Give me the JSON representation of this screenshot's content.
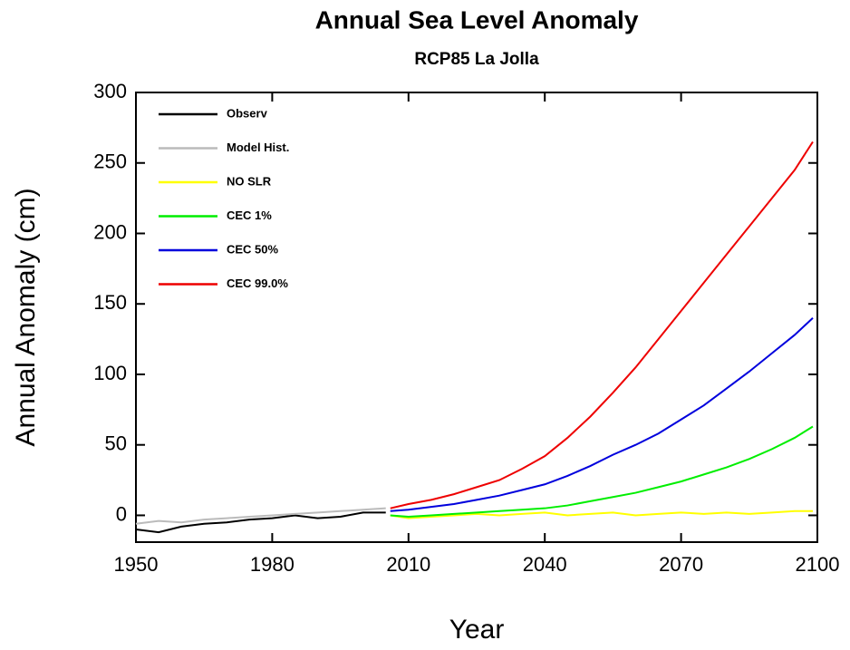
{
  "chart_data": {
    "type": "line",
    "title": "Annual Sea Level Anomaly",
    "subtitle": "RCP85 La Jolla",
    "x_label": "Year",
    "y_label": "Annual Anomaly (cm)",
    "xlim": [
      1950,
      2100
    ],
    "xticks": [
      1950,
      1980,
      2010,
      2040,
      2070,
      2100
    ],
    "ylim": [
      -19,
      300
    ],
    "yticks": [
      0,
      50,
      100,
      150,
      200,
      250,
      300
    ],
    "legend": "top-left",
    "series": [
      {
        "name": "Observ",
        "color": "#000000",
        "x": [
          1950,
          1955,
          1960,
          1965,
          1970,
          1975,
          1980,
          1985,
          1990,
          1995,
          2000,
          2005
        ],
        "values": [
          -10,
          -12,
          -8,
          -6,
          -5,
          -3,
          -2,
          0,
          -2,
          -1,
          2,
          2
        ]
      },
      {
        "name": "Model Hist.",
        "color": "#bbbbbb",
        "x": [
          1950,
          1955,
          1960,
          1965,
          1970,
          1975,
          1980,
          1985,
          1990,
          1995,
          2000,
          2005
        ],
        "values": [
          -6,
          -4,
          -5,
          -3,
          -2,
          -1,
          0,
          1,
          2,
          3,
          4,
          5
        ]
      },
      {
        "name": "NO SLR",
        "color": "#ffff00",
        "x": [
          2006,
          2010,
          2015,
          2020,
          2025,
          2030,
          2035,
          2040,
          2045,
          2050,
          2055,
          2060,
          2065,
          2070,
          2075,
          2080,
          2085,
          2090,
          2095,
          2099
        ],
        "values": [
          0,
          -2,
          -1,
          0,
          1,
          0,
          1,
          2,
          0,
          1,
          2,
          0,
          1,
          2,
          1,
          2,
          1,
          2,
          3,
          3
        ]
      },
      {
        "name": "CEC 1%",
        "color": "#00ee00",
        "x": [
          2006,
          2010,
          2015,
          2020,
          2025,
          2030,
          2035,
          2040,
          2045,
          2050,
          2055,
          2060,
          2065,
          2070,
          2075,
          2080,
          2085,
          2090,
          2095,
          2099
        ],
        "values": [
          0,
          -1,
          0,
          1,
          2,
          3,
          4,
          5,
          7,
          10,
          13,
          16,
          20,
          24,
          29,
          34,
          40,
          47,
          55,
          63
        ]
      },
      {
        "name": "CEC 50%",
        "color": "#0000dd",
        "x": [
          2006,
          2010,
          2015,
          2020,
          2025,
          2030,
          2035,
          2040,
          2045,
          2050,
          2055,
          2060,
          2065,
          2070,
          2075,
          2080,
          2085,
          2090,
          2095,
          2099
        ],
        "values": [
          3,
          4,
          6,
          8,
          11,
          14,
          18,
          22,
          28,
          35,
          43,
          50,
          58,
          68,
          78,
          90,
          102,
          115,
          128,
          140
        ]
      },
      {
        "name": "CEC 99.0%",
        "color": "#ee0000",
        "x": [
          2006,
          2010,
          2015,
          2020,
          2025,
          2030,
          2035,
          2040,
          2045,
          2050,
          2055,
          2060,
          2065,
          2070,
          2075,
          2080,
          2085,
          2090,
          2095,
          2099
        ],
        "values": [
          5,
          8,
          11,
          15,
          20,
          25,
          33,
          42,
          55,
          70,
          87,
          105,
          125,
          145,
          165,
          185,
          205,
          225,
          245,
          265
        ]
      }
    ]
  }
}
